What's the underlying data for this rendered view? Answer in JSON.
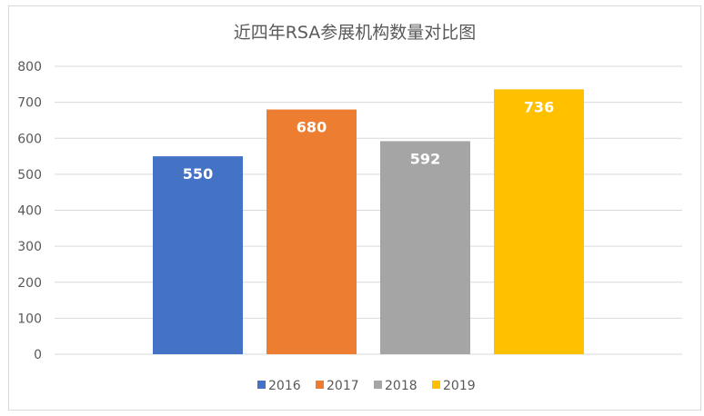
{
  "chart_data": {
    "type": "bar",
    "title": "近四年RSA参展机构数量对比图",
    "categories": [
      "2016",
      "2017",
      "2018",
      "2019"
    ],
    "values": [
      550,
      680,
      592,
      736
    ],
    "colors": [
      "#4472c4",
      "#ed7d31",
      "#a5a5a5",
      "#ffc000"
    ],
    "ylim": [
      0,
      800
    ],
    "yticks": [
      0,
      100,
      200,
      300,
      400,
      500,
      600,
      700,
      800
    ],
    "xlabel": "",
    "ylabel": "",
    "grid": true,
    "legend_position": "bottom",
    "data_labels": true
  }
}
